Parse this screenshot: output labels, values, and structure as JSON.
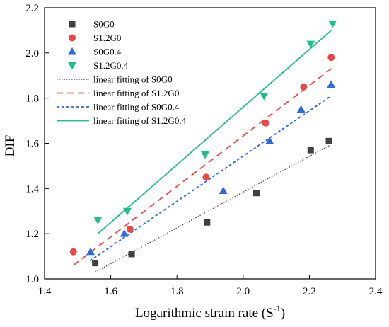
{
  "chart_data": {
    "type": "scatter",
    "xlabel": "Logarithmic strain rate (S",
    "xlabel_sup": "-1",
    "xlabel_close": ")",
    "ylabel": "DIF",
    "xlim": [
      1.4,
      2.4
    ],
    "ylim": [
      1.0,
      2.2
    ],
    "x_ticks": [
      "1.4",
      "1.6",
      "1.8",
      "2.0",
      "2.2",
      "2.4"
    ],
    "y_ticks": [
      "1.0",
      "1.2",
      "1.4",
      "1.6",
      "1.8",
      "2.0",
      "2.2"
    ],
    "grid": false,
    "legend_position": "top-left",
    "series": [
      {
        "name": "S0G0",
        "marker": "square",
        "color": "#404040",
        "x": [
          1.553,
          1.663,
          1.891,
          2.04,
          2.204,
          2.259
        ],
        "y": [
          1.07,
          1.11,
          1.25,
          1.38,
          1.57,
          1.61
        ]
      },
      {
        "name": "S1.2G0",
        "marker": "circle",
        "color": "#f04545",
        "x": [
          1.487,
          1.658,
          1.888,
          2.068,
          2.183,
          2.266
        ],
        "y": [
          1.12,
          1.22,
          1.45,
          1.69,
          1.85,
          1.98
        ]
      },
      {
        "name": "S0G0.4",
        "marker": "triangle-up",
        "color": "#2a6be0",
        "x": [
          1.539,
          1.641,
          1.94,
          2.08,
          2.175,
          2.266
        ],
        "y": [
          1.12,
          1.2,
          1.39,
          1.61,
          1.75,
          1.86
        ]
      },
      {
        "name": "S1.2G0.4",
        "marker": "triangle-down",
        "color": "#1fbf8a",
        "x": [
          1.561,
          1.65,
          1.885,
          2.063,
          2.204,
          2.27
        ],
        "y": [
          1.26,
          1.3,
          1.55,
          1.81,
          2.04,
          2.13
        ]
      }
    ],
    "fits": [
      {
        "name": "linear fitting of S0G0",
        "style": "dotted",
        "color": "#404040",
        "x": [
          1.553,
          2.26
        ],
        "y": [
          1.03,
          1.59
        ]
      },
      {
        "name": "linear fitting of S1.2G0",
        "style": "dashed",
        "color": "#f04545",
        "x": [
          1.487,
          2.266
        ],
        "y": [
          1.06,
          1.93
        ]
      },
      {
        "name": "linear fitting of S0G0.4",
        "style": "short-dash",
        "color": "#2a6be0",
        "x": [
          1.537,
          2.266
        ],
        "y": [
          1.08,
          1.81
        ]
      },
      {
        "name": "linear fitting of S1.2G0.4",
        "style": "solid",
        "color": "#1fbf8a",
        "x": [
          1.561,
          2.266
        ],
        "y": [
          1.2,
          2.1
        ]
      }
    ]
  }
}
